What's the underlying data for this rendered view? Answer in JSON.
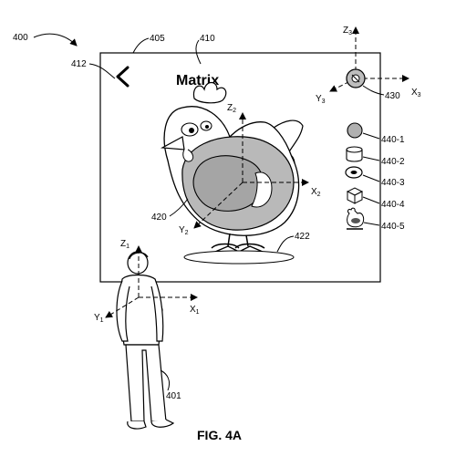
{
  "figure_label": "FIG. 4A",
  "screen": {
    "title": "Matrix",
    "back_icon": "chevron-left-icon",
    "settings_icon": "gear-icon"
  },
  "refs": {
    "system": "400",
    "display": "405",
    "title_ref": "410",
    "back_ref": "412",
    "object_ref": "420",
    "shadow_ref": "422",
    "gizmo_ref": "430",
    "user_ref": "401",
    "tools": [
      "440-1",
      "440-2",
      "440-3",
      "440-4",
      "440-5"
    ]
  },
  "tool_icons": [
    "sphere-icon",
    "cylinder-icon",
    "torus-icon",
    "cube-icon",
    "chicken-icon"
  ],
  "axes": {
    "x1": "X",
    "y1": "Y",
    "z1": "Z",
    "sub1": "1",
    "x2": "X",
    "y2": "Y",
    "z2": "Z",
    "sub2": "2",
    "x3": "X",
    "y3": "Y",
    "z3": "Z",
    "sub3": "3"
  }
}
